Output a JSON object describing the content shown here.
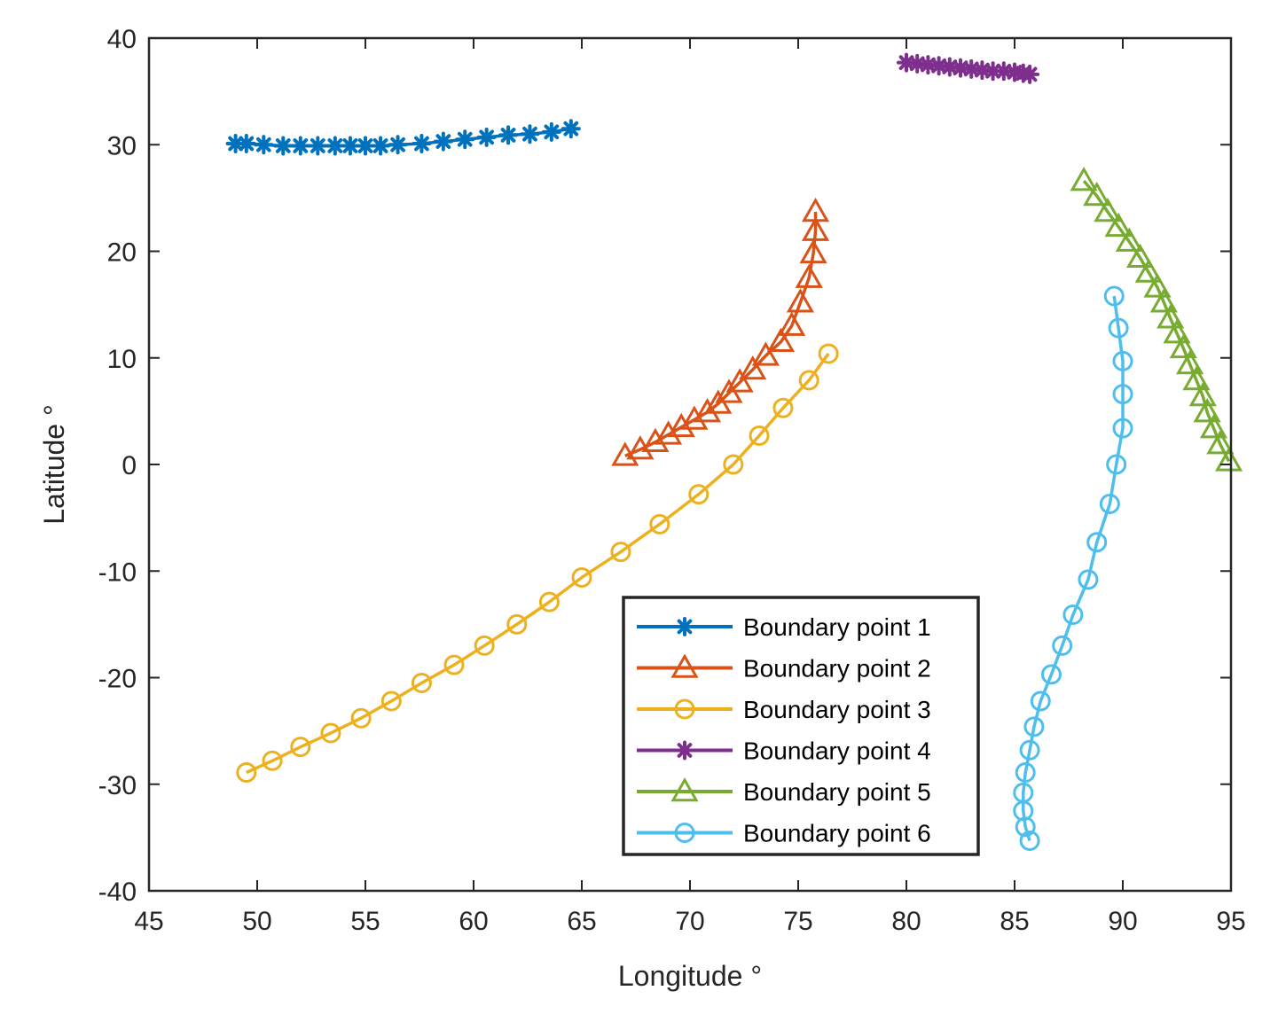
{
  "chart_data": {
    "type": "line",
    "title": "",
    "xlabel": "Longitude °",
    "ylabel": "Latitude °",
    "xlim": [
      45,
      95
    ],
    "ylim": [
      -40,
      40
    ],
    "xticks": [
      45,
      50,
      55,
      60,
      65,
      70,
      75,
      80,
      85,
      90,
      95
    ],
    "yticks": [
      -40,
      -30,
      -20,
      -10,
      0,
      10,
      20,
      30,
      40
    ],
    "grid": false,
    "legend_position": "lower-right",
    "series": [
      {
        "name": "Boundary point 1",
        "color": "#0072BD",
        "marker": "star",
        "x": [
          49.0,
          49.5,
          50.3,
          51.2,
          52.0,
          52.8,
          53.6,
          54.3,
          55.0,
          55.7,
          56.5,
          57.6,
          58.6,
          59.6,
          60.6,
          61.6,
          62.6,
          63.6,
          64.5
        ],
        "y": [
          30.1,
          30.1,
          30.0,
          29.9,
          29.9,
          29.9,
          29.9,
          29.9,
          29.9,
          29.9,
          30.0,
          30.1,
          30.3,
          30.5,
          30.7,
          30.9,
          31.0,
          31.2,
          31.5
        ]
      },
      {
        "name": "Boundary point 2",
        "color": "#D95319",
        "marker": "triangle",
        "x": [
          67.0,
          67.7,
          68.4,
          69.0,
          69.6,
          70.2,
          70.8,
          71.3,
          71.8,
          72.3,
          72.9,
          73.5,
          74.2,
          74.7,
          75.1,
          75.5,
          75.7,
          75.8,
          75.8
        ],
        "y": [
          0.8,
          1.4,
          2.1,
          2.8,
          3.5,
          4.2,
          4.9,
          5.7,
          6.7,
          7.7,
          8.9,
          10.2,
          11.5,
          13.0,
          15.2,
          17.5,
          19.8,
          21.9,
          23.7
        ]
      },
      {
        "name": "Boundary point 3",
        "color": "#EDB120",
        "marker": "circle",
        "x": [
          49.5,
          50.7,
          52.0,
          53.4,
          54.8,
          56.2,
          57.6,
          59.1,
          60.5,
          62.0,
          63.5,
          65.0,
          66.8,
          68.6,
          70.4,
          72.0,
          73.2,
          74.3,
          75.5,
          76.4
        ],
        "y": [
          -28.9,
          -27.8,
          -26.5,
          -25.2,
          -23.8,
          -22.2,
          -20.5,
          -18.8,
          -17.0,
          -15.0,
          -12.9,
          -10.6,
          -8.2,
          -5.6,
          -2.8,
          0.0,
          2.7,
          5.3,
          7.9,
          10.4
        ]
      },
      {
        "name": "Boundary point 4",
        "color": "#7E2F8E",
        "marker": "star",
        "x": [
          80.0,
          80.5,
          81.0,
          81.5,
          82.0,
          82.5,
          83.0,
          83.5,
          84.0,
          84.5,
          85.0,
          85.4,
          85.7
        ],
        "y": [
          37.7,
          37.6,
          37.5,
          37.4,
          37.3,
          37.2,
          37.1,
          37.0,
          36.9,
          36.9,
          36.8,
          36.7,
          36.6
        ]
      },
      {
        "name": "Boundary point 5",
        "color": "#77AC30",
        "marker": "triangle",
        "x": [
          88.2,
          88.8,
          89.3,
          89.8,
          90.3,
          90.8,
          91.2,
          91.6,
          91.9,
          92.2,
          92.5,
          92.8,
          93.1,
          93.4,
          93.7,
          93.9,
          94.2,
          94.5,
          94.9
        ],
        "y": [
          26.6,
          25.2,
          23.7,
          22.3,
          20.9,
          19.4,
          18.0,
          16.6,
          15.2,
          13.7,
          12.3,
          10.9,
          9.4,
          7.9,
          6.4,
          4.9,
          3.4,
          1.9,
          0.3
        ]
      },
      {
        "name": "Boundary point 6",
        "color": "#4DBEEE",
        "marker": "circle",
        "x": [
          89.6,
          89.8,
          90.0,
          90.0,
          90.0,
          89.7,
          89.4,
          88.8,
          88.4,
          87.7,
          87.2,
          86.7,
          86.2,
          85.9,
          85.7,
          85.5,
          85.4,
          85.4,
          85.5,
          85.7
        ],
        "y": [
          15.8,
          12.8,
          9.7,
          6.6,
          3.4,
          0.0,
          -3.7,
          -7.3,
          -10.8,
          -14.1,
          -17.0,
          -19.7,
          -22.2,
          -24.6,
          -26.8,
          -28.9,
          -30.8,
          -32.5,
          -34.0,
          -35.3
        ]
      }
    ]
  }
}
